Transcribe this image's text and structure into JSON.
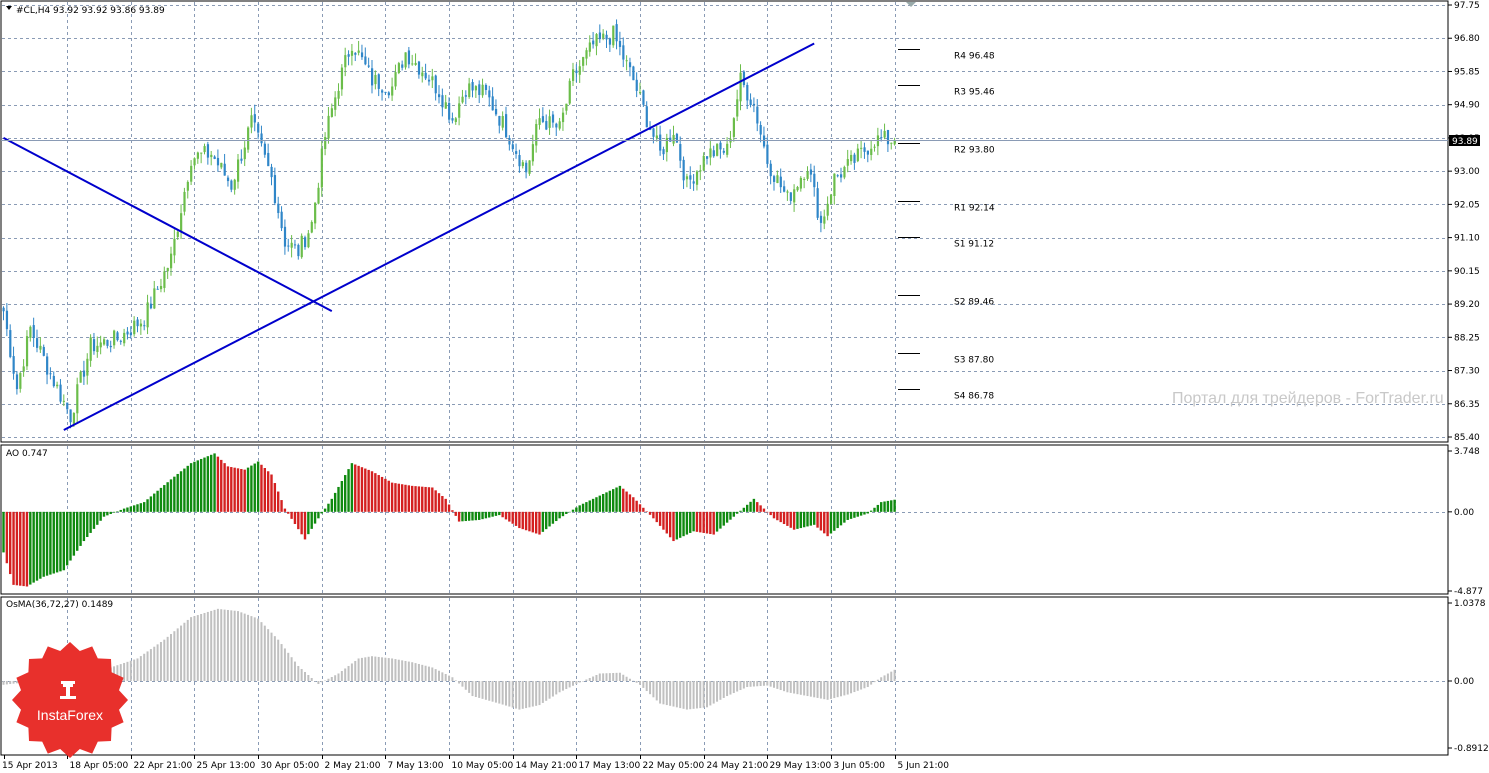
{
  "main_panel": {
    "header": "#CL,H4  93.92 93.92 93.86 93.89",
    "current_price": "93.89",
    "price_axis_labels": [
      "97.75",
      "96.80",
      "95.85",
      "94.90",
      "93.95",
      "93.00",
      "92.05",
      "91.10",
      "90.15",
      "89.20",
      "88.25",
      "87.30",
      "86.35",
      "85.40"
    ],
    "pivot_levels": [
      {
        "label": "R4 96.48",
        "value": 96.48
      },
      {
        "label": "R3 95.46",
        "value": 95.46
      },
      {
        "label": "R2 93.80",
        "value": 93.8
      },
      {
        "label": "R1 92.14",
        "value": 92.14
      },
      {
        "label": "S1 91.12",
        "value": 91.12
      },
      {
        "label": "S2 89.46",
        "value": 89.46
      },
      {
        "label": "S3 87.80",
        "value": 87.8
      },
      {
        "label": "S4 86.78",
        "value": 86.78
      }
    ],
    "watermark": "Портал для трейдеров - ForTrader.ru"
  },
  "ao_panel": {
    "header": "AO 0.747",
    "axis_labels": [
      "3.748",
      "0.00",
      "-4.877"
    ]
  },
  "osma_panel": {
    "header": "OsMA(36,72,27) 0.1489",
    "axis_labels": [
      "1.0378",
      "0.00",
      "-0.8912"
    ]
  },
  "time_axis_labels": [
    "15 Apr 2013",
    "18 Apr 05:00",
    "22 Apr 21:00",
    "25 Apr 13:00",
    "30 Apr 05:00",
    "2 May 21:00",
    "7 May 13:00",
    "10 May 05:00",
    "14 May 21:00",
    "17 May 13:00",
    "22 May 05:00",
    "24 May 21:00",
    "29 May 13:00",
    "3 Jun 05:00",
    "5 Jun 21:00"
  ],
  "logo": {
    "text": "InstaForex"
  },
  "colors": {
    "bull": "#6bbd4a",
    "bear": "#2f86c8",
    "ao_up": "#0f8a0f",
    "ao_down": "#d42020",
    "osma": "#c0c0c0",
    "trendline": "#0000cc",
    "grid": "#8a9bb5",
    "logo": "#e8302c"
  },
  "chart_data": [
    {
      "type": "candlestick",
      "title": "#CL,H4",
      "ylim": [
        85.4,
        97.75
      ],
      "x_tick_labels": [
        "15 Apr 2013",
        "18 Apr 05:00",
        "22 Apr 21:00",
        "25 Apr 13:00",
        "30 Apr 05:00",
        "2 May 21:00",
        "7 May 13:00",
        "10 May 05:00",
        "14 May 21:00",
        "17 May 13:00",
        "22 May 05:00",
        "24 May 21:00",
        "29 May 13:00",
        "3 Jun 05:00",
        "5 Jun 21:00"
      ],
      "anchor_bars": [
        0,
        19,
        38,
        57,
        76,
        95,
        114,
        133,
        152,
        171,
        190,
        209,
        228,
        247,
        266
      ],
      "close_path": [
        [
          0,
          89.0
        ],
        [
          4,
          86.8
        ],
        [
          8,
          88.5
        ],
        [
          14,
          87.2
        ],
        [
          20,
          86.0
        ],
        [
          26,
          88.0
        ],
        [
          34,
          88.2
        ],
        [
          42,
          88.8
        ],
        [
          50,
          90.5
        ],
        [
          56,
          93.4
        ],
        [
          62,
          93.5
        ],
        [
          68,
          92.6
        ],
        [
          74,
          94.4
        ],
        [
          80,
          92.8
        ],
        [
          84,
          91.0
        ],
        [
          88,
          90.7
        ],
        [
          92,
          91.5
        ],
        [
          96,
          94.0
        ],
        [
          100,
          95.5
        ],
        [
          104,
          96.7
        ],
        [
          110,
          95.6
        ],
        [
          116,
          95.4
        ],
        [
          120,
          96.4
        ],
        [
          126,
          95.8
        ],
        [
          130,
          95.3
        ],
        [
          134,
          94.5
        ],
        [
          138,
          95.4
        ],
        [
          144,
          95.2
        ],
        [
          150,
          94.2
        ],
        [
          156,
          93.0
        ],
        [
          160,
          94.5
        ],
        [
          166,
          94.2
        ],
        [
          170,
          95.7
        ],
        [
          176,
          96.6
        ],
        [
          182,
          96.9
        ],
        [
          188,
          95.6
        ],
        [
          192,
          94.5
        ],
        [
          196,
          93.5
        ],
        [
          200,
          94.2
        ],
        [
          204,
          92.6
        ],
        [
          210,
          93.5
        ],
        [
          216,
          93.6
        ],
        [
          220,
          95.6
        ],
        [
          224,
          94.9
        ],
        [
          228,
          93.3
        ],
        [
          234,
          92.2
        ],
        [
          240,
          93.2
        ],
        [
          244,
          91.5
        ],
        [
          248,
          92.8
        ],
        [
          254,
          93.3
        ],
        [
          260,
          93.9
        ],
        [
          266,
          93.89
        ]
      ],
      "pivot_levels": [
        96.48,
        95.46,
        93.8,
        92.14,
        91.12,
        89.46,
        87.8,
        86.78
      ],
      "last_price": 93.89,
      "trendlines": [
        {
          "from": {
            "bar": 0,
            "price": 93.95
          },
          "to": {
            "bar": 98,
            "price": 89.0
          }
        },
        {
          "from": {
            "bar": 18,
            "price": 85.6
          },
          "to": {
            "bar": 242,
            "price": 96.65
          }
        }
      ]
    },
    {
      "type": "bar",
      "title": "AO",
      "ylim": [
        -4.877,
        3.748
      ],
      "last_value": 0.747,
      "keyframes": [
        [
          0,
          -2.5
        ],
        [
          3,
          -4.5
        ],
        [
          7,
          -4.6
        ],
        [
          12,
          -4.0
        ],
        [
          18,
          -3.6
        ],
        [
          24,
          -1.8
        ],
        [
          30,
          -0.3
        ],
        [
          36,
          0.2
        ],
        [
          42,
          0.6
        ],
        [
          50,
          2.0
        ],
        [
          56,
          3.0
        ],
        [
          63,
          3.6
        ],
        [
          67,
          2.8
        ],
        [
          72,
          2.6
        ],
        [
          76,
          3.1
        ],
        [
          80,
          2.3
        ],
        [
          84,
          0.2
        ],
        [
          90,
          -1.7
        ],
        [
          94,
          -0.4
        ],
        [
          98,
          0.8
        ],
        [
          104,
          3.0
        ],
        [
          110,
          2.5
        ],
        [
          116,
          1.8
        ],
        [
          122,
          1.6
        ],
        [
          128,
          1.5
        ],
        [
          132,
          0.8
        ],
        [
          136,
          -0.6
        ],
        [
          142,
          -0.5
        ],
        [
          148,
          -0.2
        ],
        [
          154,
          -1.0
        ],
        [
          160,
          -1.4
        ],
        [
          166,
          -0.4
        ],
        [
          172,
          0.4
        ],
        [
          178,
          1.0
        ],
        [
          184,
          1.6
        ],
        [
          188,
          0.9
        ],
        [
          194,
          -0.4
        ],
        [
          200,
          -1.8
        ],
        [
          206,
          -1.2
        ],
        [
          212,
          -1.4
        ],
        [
          218,
          -0.3
        ],
        [
          224,
          0.8
        ],
        [
          230,
          -0.4
        ],
        [
          236,
          -1.1
        ],
        [
          242,
          -0.8
        ],
        [
          246,
          -1.5
        ],
        [
          252,
          -0.5
        ],
        [
          258,
          -0.1
        ],
        [
          262,
          0.6
        ],
        [
          266,
          0.747
        ]
      ]
    },
    {
      "type": "bar",
      "title": "OsMA(36,72,27)",
      "ylim": [
        -0.8912,
        1.0378
      ],
      "last_value": 0.1489,
      "keyframes": [
        [
          0,
          -0.05
        ],
        [
          8,
          -0.01
        ],
        [
          16,
          0.06
        ],
        [
          24,
          0.04
        ],
        [
          32,
          0.18
        ],
        [
          40,
          0.3
        ],
        [
          48,
          0.55
        ],
        [
          56,
          0.85
        ],
        [
          64,
          0.96
        ],
        [
          70,
          0.93
        ],
        [
          76,
          0.83
        ],
        [
          82,
          0.55
        ],
        [
          88,
          0.2
        ],
        [
          94,
          -0.04
        ],
        [
          100,
          0.1
        ],
        [
          106,
          0.3
        ],
        [
          110,
          0.33
        ],
        [
          116,
          0.3
        ],
        [
          122,
          0.25
        ],
        [
          128,
          0.18
        ],
        [
          134,
          0.05
        ],
        [
          140,
          -0.2
        ],
        [
          148,
          -0.3
        ],
        [
          154,
          -0.38
        ],
        [
          160,
          -0.32
        ],
        [
          166,
          -0.15
        ],
        [
          172,
          -0.02
        ],
        [
          178,
          0.1
        ],
        [
          184,
          0.11
        ],
        [
          190,
          -0.05
        ],
        [
          196,
          -0.3
        ],
        [
          204,
          -0.38
        ],
        [
          210,
          -0.35
        ],
        [
          216,
          -0.2
        ],
        [
          222,
          -0.08
        ],
        [
          228,
          -0.06
        ],
        [
          234,
          -0.15
        ],
        [
          240,
          -0.2
        ],
        [
          246,
          -0.25
        ],
        [
          252,
          -0.18
        ],
        [
          258,
          -0.08
        ],
        [
          262,
          0.05
        ],
        [
          266,
          0.1489
        ]
      ]
    }
  ]
}
